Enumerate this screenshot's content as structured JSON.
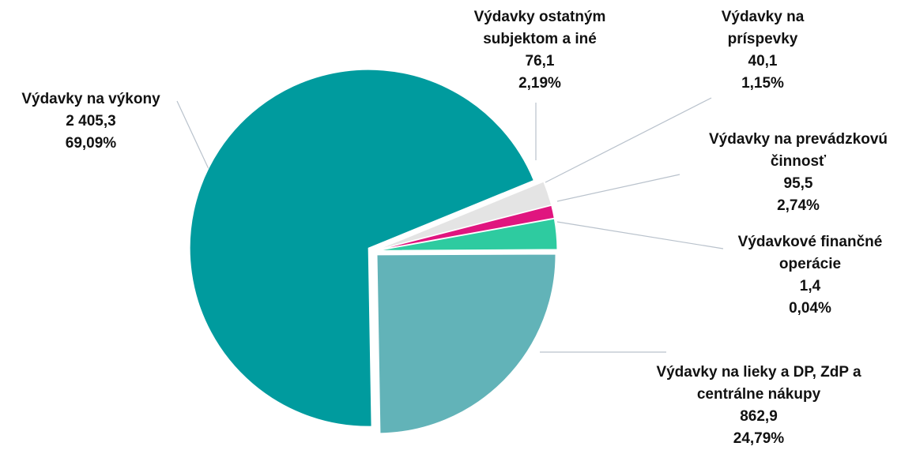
{
  "chart_data": {
    "type": "pie",
    "categories": [
      "Výdavky na výkony",
      "Výdavky ostatným subjektom a iné",
      "Výdavky na príspevky",
      "Výdavky na prevádzkovú činnosť",
      "Výdavkové finančné operácie",
      "Výdavky na lieky a DP, ZdP a centrálne nákupy"
    ],
    "values": [
      2405.3,
      76.1,
      40.1,
      95.5,
      1.4,
      862.9
    ],
    "value_labels": [
      "2 405,3",
      "76,1",
      "40,1",
      "95,5",
      "1,4",
      "862,9"
    ],
    "percent_labels": [
      "69,09%",
      "2,19%",
      "1,15%",
      "2,74%",
      "0,04%",
      "24,79%"
    ],
    "colors": [
      "#009b9e",
      "#e4e4e4",
      "#e0157f",
      "#2ecba0",
      "#1d6f86",
      "#62b3b8"
    ]
  }
}
